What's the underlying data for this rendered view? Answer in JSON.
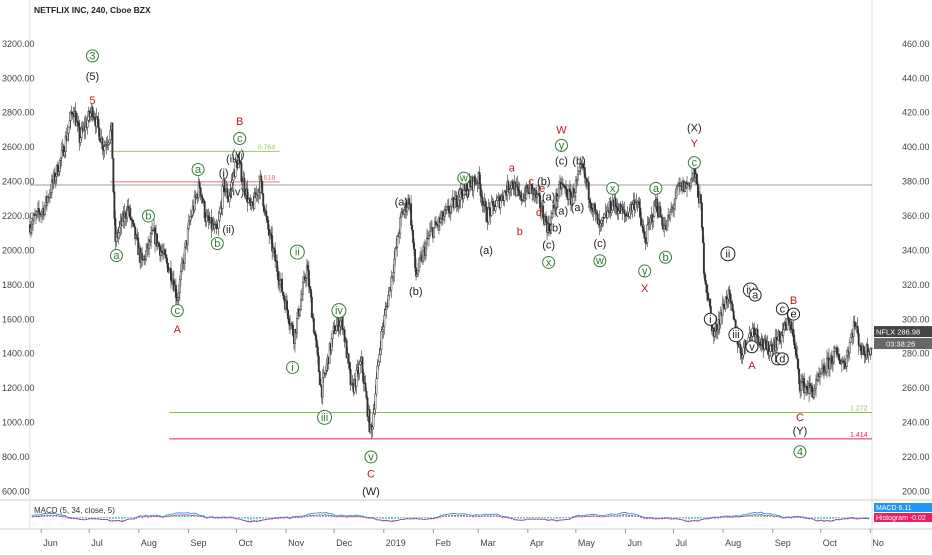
{
  "header": {
    "symbol_title": "NETFLIX INC, 240, Cboe BZX"
  },
  "chart_data": {
    "type": "candlestick",
    "grid": false,
    "left_axis": {
      "ticks": [
        "3200.00",
        "3000.00",
        "2800.00",
        "2600.00",
        "2400.00",
        "2200.00",
        "2000.00",
        "1800.00",
        "1600.00",
        "1400.00",
        "1200.00",
        "1000.00",
        "800.00",
        "600.00"
      ],
      "values": [
        3200,
        3000,
        2800,
        2600,
        2400,
        2200,
        2000,
        1800,
        1600,
        1400,
        1200,
        1000,
        800,
        600
      ],
      "ylim": [
        550,
        3350
      ]
    },
    "right_axis": {
      "ticks": [
        "460.00",
        "440.00",
        "420.00",
        "400.00",
        "380.00",
        "360.00",
        "340.00",
        "320.00",
        "300.00",
        "280.00",
        "260.00",
        "240.00",
        "220.00",
        "200.00"
      ],
      "values": [
        460,
        440,
        420,
        400,
        380,
        360,
        340,
        320,
        300,
        280,
        260,
        240,
        220,
        200
      ],
      "ylim": [
        195,
        475
      ]
    },
    "x_axis": {
      "labels": [
        "Jun",
        "Jul",
        "Aug",
        "Sep",
        "Oct",
        "Nov",
        "Dec",
        "2019",
        "Feb",
        "Mar",
        "Apr",
        "May",
        "Jun",
        "Jul",
        "Aug",
        "Sep",
        "Oct",
        "No"
      ],
      "start": "2018-05-25",
      "end": "2019-11-02"
    },
    "price_path": [
      [
        "2018-05-25",
        2150
      ],
      [
        "2018-06-03",
        2250
      ],
      [
        "2018-06-14",
        2550
      ],
      [
        "2018-06-21",
        2830
      ],
      [
        "2018-06-25",
        2650
      ],
      [
        "2018-07-03",
        2820
      ],
      [
        "2018-07-10",
        2600
      ],
      [
        "2018-07-15",
        2700
      ],
      [
        "2018-07-17",
        2050
      ],
      [
        "2018-07-25",
        2250
      ],
      [
        "2018-08-03",
        1920
      ],
      [
        "2018-08-10",
        2100
      ],
      [
        "2018-08-22",
        1850
      ],
      [
        "2018-08-25",
        1720
      ],
      [
        "2018-09-02",
        2180
      ],
      [
        "2018-09-08",
        2380
      ],
      [
        "2018-09-12",
        2180
      ],
      [
        "2018-09-19",
        2100
      ],
      [
        "2018-09-23",
        2380
      ],
      [
        "2018-09-26",
        2300
      ],
      [
        "2018-09-30",
        2480
      ],
      [
        "2018-10-02",
        2520
      ],
      [
        "2018-10-10",
        2230
      ],
      [
        "2018-10-16",
        2400
      ],
      [
        "2018-10-20",
        2150
      ],
      [
        "2018-10-30",
        1750
      ],
      [
        "2018-11-06",
        1500
      ],
      [
        "2018-11-14",
        1900
      ],
      [
        "2018-11-23",
        1180
      ],
      [
        "2018-12-01",
        1540
      ],
      [
        "2018-12-06",
        1600
      ],
      [
        "2018-12-12",
        1180
      ],
      [
        "2018-12-18",
        1350
      ],
      [
        "2018-12-24",
        920
      ],
      [
        "2018-12-30",
        1480
      ],
      [
        "2019-01-05",
        1800
      ],
      [
        "2019-01-12",
        2200
      ],
      [
        "2019-01-17",
        2300
      ],
      [
        "2019-01-21",
        1850
      ],
      [
        "2019-01-30",
        2100
      ],
      [
        "2019-02-08",
        2200
      ],
      [
        "2019-02-20",
        2350
      ],
      [
        "2019-03-01",
        2420
      ],
      [
        "2019-03-06",
        2200
      ],
      [
        "2019-03-15",
        2300
      ],
      [
        "2019-03-22",
        2400
      ],
      [
        "2019-03-27",
        2300
      ],
      [
        "2019-04-03",
        2360
      ],
      [
        "2019-04-08",
        2280
      ],
      [
        "2019-04-14",
        2120
      ],
      [
        "2019-04-18",
        2280
      ],
      [
        "2019-04-22",
        2380
      ],
      [
        "2019-04-28",
        2300
      ],
      [
        "2019-05-05",
        2480
      ],
      [
        "2019-05-10",
        2300
      ],
      [
        "2019-05-16",
        2120
      ],
      [
        "2019-05-24",
        2280
      ],
      [
        "2019-06-01",
        2200
      ],
      [
        "2019-06-08",
        2300
      ],
      [
        "2019-06-13",
        2050
      ],
      [
        "2019-06-20",
        2280
      ],
      [
        "2019-06-26",
        2120
      ],
      [
        "2019-07-04",
        2360
      ],
      [
        "2019-07-10",
        2380
      ],
      [
        "2019-07-14",
        2450
      ],
      [
        "2019-07-18",
        2260
      ],
      [
        "2019-07-20",
        1900
      ],
      [
        "2019-07-26",
        1500
      ],
      [
        "2019-08-04",
        1750
      ],
      [
        "2019-08-12",
        1400
      ],
      [
        "2019-08-20",
        1550
      ],
      [
        "2019-08-28",
        1420
      ],
      [
        "2019-09-04",
        1480
      ],
      [
        "2019-09-12",
        1600
      ],
      [
        "2019-09-18",
        1230
      ],
      [
        "2019-09-26",
        1180
      ],
      [
        "2019-10-04",
        1320
      ],
      [
        "2019-10-10",
        1400
      ],
      [
        "2019-10-16",
        1340
      ],
      [
        "2019-10-22",
        1580
      ],
      [
        "2019-10-27",
        1400
      ],
      [
        "2019-11-02",
        1450
      ]
    ],
    "horizontal_levels": [
      {
        "label": "0.764",
        "value": 2575,
        "color": "#9ccc65",
        "from": "2018-07-14",
        "to": "2018-10-28"
      },
      {
        "label": "0.618",
        "value": 2398,
        "color": "#e57373",
        "from": "2018-07-14",
        "to": "2018-10-28"
      },
      {
        "label": "",
        "value": 2380,
        "color": "#9e9e9e",
        "from": "2018-05-25",
        "to": "2019-11-02"
      },
      {
        "label": "1.272",
        "value": 1058,
        "color": "#8bc34a",
        "from": "2018-08-20",
        "to": "2019-11-02"
      },
      {
        "label": "1.414",
        "value": 905,
        "color": "#e91e63",
        "from": "2018-08-20",
        "to": "2019-11-02"
      }
    ],
    "wave_labels": [
      {
        "text": "3",
        "date": "2018-07-03",
        "price": 3130,
        "color": "#2e7d32",
        "circled": true
      },
      {
        "text": "(5)",
        "date": "2018-07-03",
        "price": 3010,
        "color": "#222222",
        "circled": false
      },
      {
        "text": "5",
        "date": "2018-07-03",
        "price": 2870,
        "color": "#b71c1c",
        "circled": false
      },
      {
        "text": "a",
        "date": "2018-07-18",
        "price": 1970,
        "color": "#2e7d32",
        "circled": true
      },
      {
        "text": "b",
        "date": "2018-08-07",
        "price": 2200,
        "color": "#2e7d32",
        "circled": true
      },
      {
        "text": "c",
        "date": "2018-08-25",
        "price": 1650,
        "color": "#2e7d32",
        "circled": true
      },
      {
        "text": "A",
        "date": "2018-08-25",
        "price": 1540,
        "color": "#b71c1c",
        "circled": false
      },
      {
        "text": "a",
        "date": "2018-09-07",
        "price": 2470,
        "color": "#2e7d32",
        "circled": true
      },
      {
        "text": "b",
        "date": "2018-09-19",
        "price": 2040,
        "color": "#2e7d32",
        "circled": true
      },
      {
        "text": "(i)",
        "date": "2018-09-23",
        "price": 2450,
        "color": "#222222",
        "circled": false
      },
      {
        "text": "(ii)",
        "date": "2018-09-26",
        "price": 2120,
        "color": "#222222",
        "circled": false
      },
      {
        "text": "(iii)",
        "date": "2018-09-29",
        "price": 2530,
        "color": "#222222",
        "circled": false
      },
      {
        "text": "(iv)",
        "date": "2018-10-01",
        "price": 2340,
        "color": "#222222",
        "circled": false
      },
      {
        "text": "(v)",
        "date": "2018-10-02",
        "price": 2560,
        "color": "#222222",
        "circled": false
      },
      {
        "text": "c",
        "date": "2018-10-03",
        "price": 2650,
        "color": "#2e7d32",
        "circled": true
      },
      {
        "text": "B",
        "date": "2018-10-03",
        "price": 2750,
        "color": "#b71c1c",
        "circled": false
      },
      {
        "text": "ii",
        "date": "2018-11-08",
        "price": 1990,
        "color": "#2e7d32",
        "circled": true
      },
      {
        "text": "i",
        "date": "2018-11-05",
        "price": 1320,
        "color": "#2e7d32",
        "circled": true
      },
      {
        "text": "iv",
        "date": "2018-12-04",
        "price": 1650,
        "color": "#2e7d32",
        "circled": true
      },
      {
        "text": "iii",
        "date": "2018-11-25",
        "price": 1030,
        "color": "#2e7d32",
        "circled": true
      },
      {
        "text": "v",
        "date": "2018-12-24",
        "price": 800,
        "color": "#2e7d32",
        "circled": true
      },
      {
        "text": "C",
        "date": "2018-12-24",
        "price": 700,
        "color": "#b71c1c",
        "circled": false
      },
      {
        "text": "(W)",
        "date": "2018-12-24",
        "price": 600,
        "color": "#222222",
        "circled": false
      },
      {
        "text": "(a)",
        "date": "2019-01-12",
        "price": 2280,
        "color": "#222222",
        "circled": false
      },
      {
        "text": "(b)",
        "date": "2019-01-21",
        "price": 1760,
        "color": "#222222",
        "circled": false
      },
      {
        "text": "w",
        "date": "2019-02-20",
        "price": 2420,
        "color": "#2e7d32",
        "circled": true
      },
      {
        "text": "(c)",
        "date": "2019-02-20",
        "price": 2340,
        "color": "#222222",
        "circled": false
      },
      {
        "text": "(a)",
        "date": "2019-03-06",
        "price": 2000,
        "color": "#222222",
        "circled": false
      },
      {
        "text": "a",
        "date": "2019-03-22",
        "price": 2480,
        "color": "#b71c1c",
        "circled": false
      },
      {
        "text": "b",
        "date": "2019-03-27",
        "price": 2110,
        "color": "#b71c1c",
        "circled": false
      },
      {
        "text": "c",
        "date": "2019-04-03",
        "price": 2400,
        "color": "#b71c1c",
        "circled": false
      },
      {
        "text": "d",
        "date": "2019-04-08",
        "price": 2220,
        "color": "#b71c1c",
        "circled": false
      },
      {
        "text": "e",
        "date": "2019-04-10",
        "price": 2360,
        "color": "#b71c1c",
        "circled": false
      },
      {
        "text": "(b)",
        "date": "2019-04-11",
        "price": 2400,
        "color": "#222222",
        "circled": false
      },
      {
        "text": "(a)",
        "date": "2019-04-14",
        "price": 2310,
        "color": "#222222",
        "circled": false
      },
      {
        "text": "(c)",
        "date": "2019-04-14",
        "price": 2030,
        "color": "#222222",
        "circled": false
      },
      {
        "text": "x",
        "date": "2019-04-14",
        "price": 1930,
        "color": "#2e7d32",
        "circled": true
      },
      {
        "text": "(b)",
        "date": "2019-04-18",
        "price": 2130,
        "color": "#222222",
        "circled": false
      },
      {
        "text": "(a)",
        "date": "2019-04-22",
        "price": 2230,
        "color": "#222222",
        "circled": false
      },
      {
        "text": "W",
        "date": "2019-04-22",
        "price": 2700,
        "color": "#b71c1c",
        "circled": false
      },
      {
        "text": "y",
        "date": "2019-04-22",
        "price": 2610,
        "color": "#2e7d32",
        "circled": true
      },
      {
        "text": "(c)",
        "date": "2019-04-22",
        "price": 2520,
        "color": "#222222",
        "circled": false
      },
      {
        "text": "(b)",
        "date": "2019-05-03",
        "price": 2520,
        "color": "#222222",
        "circled": false
      },
      {
        "text": "(a)",
        "date": "2019-05-02",
        "price": 2250,
        "color": "#222222",
        "circled": false
      },
      {
        "text": "(c)",
        "date": "2019-05-16",
        "price": 2040,
        "color": "#222222",
        "circled": false
      },
      {
        "text": "w",
        "date": "2019-05-16",
        "price": 1940,
        "color": "#2e7d32",
        "circled": true
      },
      {
        "text": "x",
        "date": "2019-05-24",
        "price": 2360,
        "color": "#2e7d32",
        "circled": true
      },
      {
        "text": "y",
        "date": "2019-06-13",
        "price": 1880,
        "color": "#2e7d32",
        "circled": true
      },
      {
        "text": "X",
        "date": "2019-06-13",
        "price": 1780,
        "color": "#b71c1c",
        "circled": false
      },
      {
        "text": "a",
        "date": "2019-06-20",
        "price": 2360,
        "color": "#2e7d32",
        "circled": true
      },
      {
        "text": "b",
        "date": "2019-06-26",
        "price": 1960,
        "color": "#2e7d32",
        "circled": true
      },
      {
        "text": "(X)",
        "date": "2019-07-14",
        "price": 2710,
        "color": "#222222",
        "circled": false
      },
      {
        "text": "Y",
        "date": "2019-07-14",
        "price": 2620,
        "color": "#b71c1c",
        "circled": false
      },
      {
        "text": "c",
        "date": "2019-07-14",
        "price": 2510,
        "color": "#2e7d32",
        "circled": true
      },
      {
        "text": "ii",
        "date": "2019-08-04",
        "price": 1980,
        "color": "#222222",
        "circled": true
      },
      {
        "text": "i",
        "date": "2019-07-24",
        "price": 1600,
        "color": "#222222",
        "circled": true
      },
      {
        "text": "iii",
        "date": "2019-08-09",
        "price": 1510,
        "color": "#222222",
        "circled": true
      },
      {
        "text": "iv",
        "date": "2019-08-18",
        "price": 1770,
        "color": "#222222",
        "circled": true
      },
      {
        "text": "a",
        "date": "2019-08-21",
        "price": 1740,
        "color": "#222222",
        "circled": true
      },
      {
        "text": "v",
        "date": "2019-08-19",
        "price": 1440,
        "color": "#222222",
        "circled": true
      },
      {
        "text": "A",
        "date": "2019-08-19",
        "price": 1330,
        "color": "#b71c1c",
        "circled": false
      },
      {
        "text": "b",
        "date": "2019-09-04",
        "price": 1370,
        "color": "#222222",
        "circled": true
      },
      {
        "text": "d",
        "date": "2019-09-07",
        "price": 1370,
        "color": "#222222",
        "circled": true
      },
      {
        "text": "c",
        "date": "2019-09-07",
        "price": 1660,
        "color": "#222222",
        "circled": true
      },
      {
        "text": "e",
        "date": "2019-09-14",
        "price": 1630,
        "color": "#222222",
        "circled": true
      },
      {
        "text": "B",
        "date": "2019-09-14",
        "price": 1710,
        "color": "#b71c1c",
        "circled": false
      },
      {
        "text": "C",
        "date": "2019-09-18",
        "price": 1030,
        "color": "#b71c1c",
        "circled": false
      },
      {
        "text": "(Y)",
        "date": "2019-09-18",
        "price": 950,
        "color": "#222222",
        "circled": false
      },
      {
        "text": "4",
        "date": "2019-09-18",
        "price": 830,
        "color": "#2e7d32",
        "circled": true
      }
    ],
    "price_tag": {
      "symbol": "NFLX",
      "value": "286.98",
      "countdown": "03:38:26",
      "price": 1450
    },
    "macd": {
      "title": "MACD (5, 34, close, 5)",
      "macd_label": "MACD",
      "macd_value": "6.11",
      "hist_label": "Histogram",
      "hist_value": "-0.02",
      "macd_color": "#2196f3",
      "hist_color": "#e91e63"
    }
  }
}
